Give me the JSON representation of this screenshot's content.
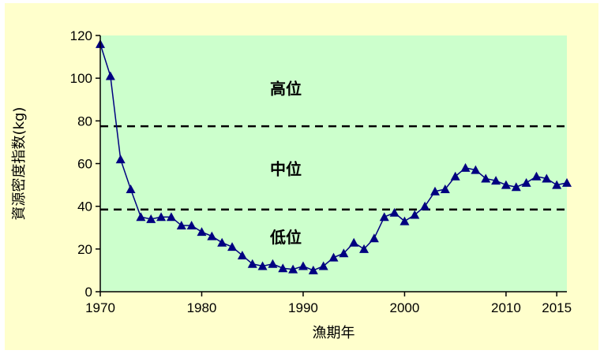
{
  "chart_data": {
    "type": "line",
    "xlabel": "漁期年",
    "ylabel": "資源密度指数(kg)",
    "xlim": [
      1970,
      2016
    ],
    "ylim": [
      0,
      120
    ],
    "x_ticks": [
      "1970",
      "1980",
      "1990",
      "2000",
      "2010",
      "2015"
    ],
    "y_ticks": [
      "0",
      "20",
      "40",
      "60",
      "80",
      "100",
      "120"
    ],
    "grid": false,
    "colors": {
      "plot_bg": "#ccffcc",
      "frame_bg": "#ffffcc",
      "series": "#000080",
      "threshold": "#000000"
    },
    "thresholds": [
      {
        "value": 77.5,
        "style": "dashed"
      },
      {
        "value": 38.5,
        "style": "dashed"
      }
    ],
    "zone_labels": [
      {
        "text": "高位",
        "y": 95
      },
      {
        "text": "中位",
        "y": 57.5
      },
      {
        "text": "低位",
        "y": 25.5
      }
    ],
    "series": [
      {
        "marker": "triangle",
        "x": [
          1970,
          1971,
          1972,
          1973,
          1974,
          1975,
          1976,
          1977,
          1978,
          1979,
          1980,
          1981,
          1982,
          1983,
          1984,
          1985,
          1986,
          1987,
          1988,
          1989,
          1990,
          1991,
          1992,
          1993,
          1994,
          1995,
          1996,
          1997,
          1998,
          1999,
          2000,
          2001,
          2002,
          2003,
          2004,
          2005,
          2006,
          2007,
          2008,
          2009,
          2010,
          2011,
          2012,
          2013,
          2014,
          2015,
          2016
        ],
        "values": [
          116,
          101,
          62,
          48,
          35,
          34,
          35,
          35,
          31,
          31,
          28,
          26,
          23,
          21,
          17,
          13,
          12,
          13,
          11,
          10.5,
          12,
          10,
          12,
          16,
          18,
          23,
          20,
          25,
          35,
          37,
          33,
          36,
          40,
          47,
          48,
          54,
          58,
          57,
          53,
          52,
          50,
          49,
          51,
          54,
          53,
          50,
          51
        ]
      }
    ]
  }
}
